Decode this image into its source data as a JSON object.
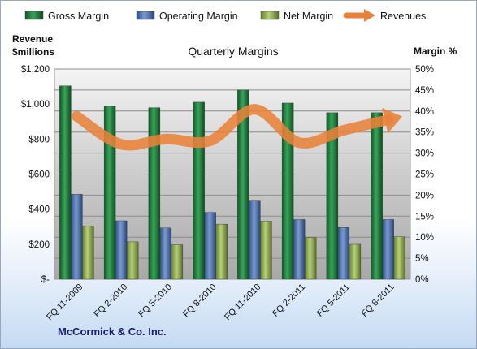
{
  "chart_data": {
    "type": "bar",
    "title": "Quarterly Margins",
    "company": "McCormick & Co. Inc.",
    "categories": [
      "FQ 11-2009",
      "FQ 2-2010",
      "FQ 5-2010",
      "FQ 8-2010",
      "FQ 11-2010",
      "FQ 2-2011",
      "FQ 5-2011",
      "FQ 8-2011"
    ],
    "series": [
      {
        "name": "Gross Margin",
        "kind": "bar",
        "axis": "right",
        "color": "#1f7a3a",
        "values": [
          46,
          41.2,
          40.8,
          42.1,
          45,
          41.9,
          39.6,
          39.6
        ]
      },
      {
        "name": "Operating Margin",
        "kind": "bar",
        "axis": "right",
        "color": "#4a6ea8",
        "values": [
          20.2,
          13.9,
          12.2,
          15.9,
          18.6,
          14.2,
          12.3,
          14.2
        ]
      },
      {
        "name": "Net Margin",
        "kind": "bar",
        "axis": "right",
        "color": "#8fae4c",
        "values": [
          12.7,
          8.9,
          8.2,
          13.1,
          13.8,
          9.9,
          8.3,
          10.1
        ]
      },
      {
        "name": "Revenues",
        "kind": "line",
        "axis": "left",
        "color": "#e8823a",
        "values": [
          930,
          770,
          800,
          790,
          970,
          780,
          850,
          910
        ]
      }
    ],
    "y_left": {
      "label_line1": "Revenue",
      "label_line2": "$millions",
      "range": [
        0,
        1200
      ],
      "ticks": [
        "$-",
        "$200",
        "$400",
        "$600",
        "$800",
        "$1,000",
        "$1,200"
      ]
    },
    "y_right": {
      "label": "Margin %",
      "range": [
        0,
        50
      ],
      "ticks": [
        "0%",
        "5%",
        "10%",
        "15%",
        "20%",
        "25%",
        "30%",
        "35%",
        "40%",
        "45%",
        "50%"
      ]
    },
    "grid": true,
    "legend_position": "top"
  }
}
